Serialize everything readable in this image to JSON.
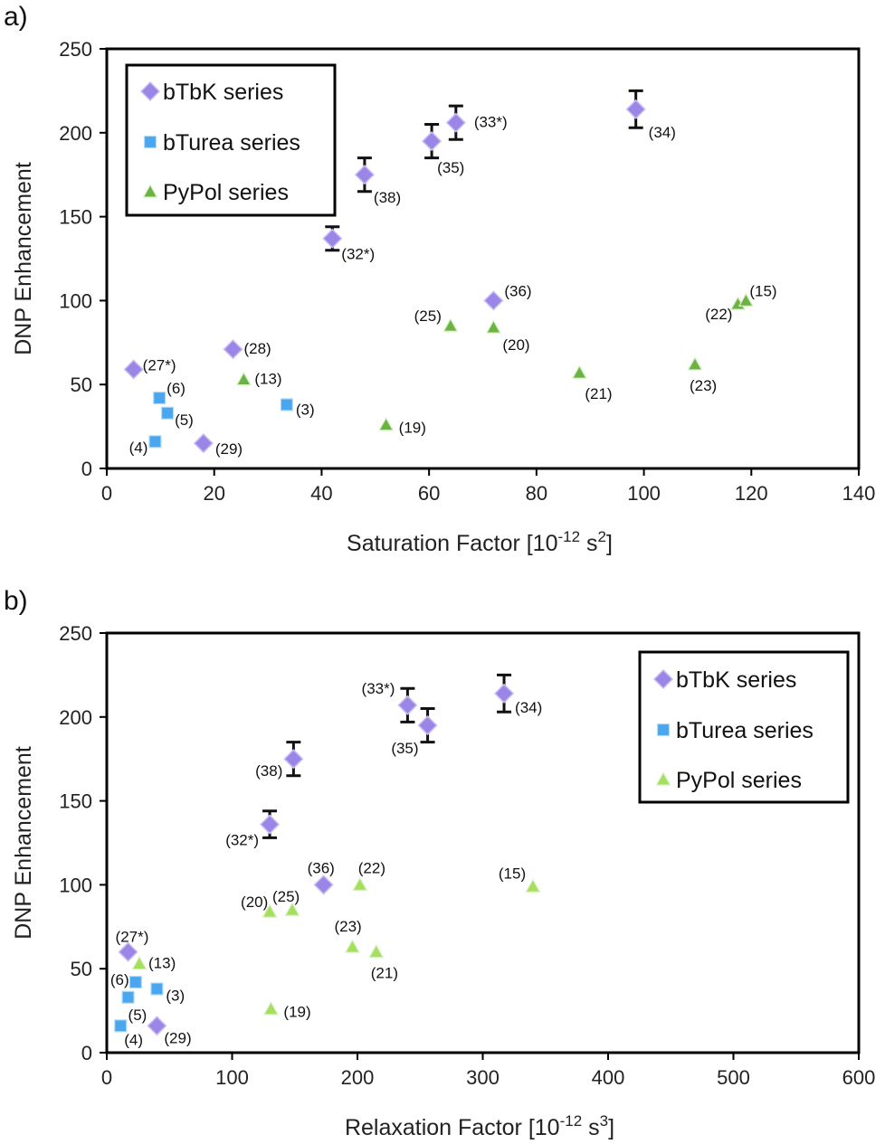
{
  "colors": {
    "bTbK": "#9b86e8",
    "bTurea": "#4aa6ee",
    "PyPol_a": "#6bb342",
    "PyPol_b": "#a4e05c",
    "errorbar": "#111111"
  },
  "chart_data": [
    {
      "panel": "a)",
      "type": "scatter",
      "xlabel": "Saturation Factor [10",
      "xlabel_exp1": "-12",
      "xlabel_mid": " s",
      "xlabel_exp2": "2",
      "xlabel_end": "]",
      "ylabel": "DNP Enhancement",
      "xlim": [
        0,
        140
      ],
      "ylim": [
        0,
        250
      ],
      "xticks": [
        0,
        20,
        40,
        60,
        80,
        100,
        120,
        140
      ],
      "yticks": [
        0,
        50,
        100,
        150,
        200,
        250
      ],
      "legend_position": "top-left",
      "series": [
        {
          "name": "bTbK series",
          "marker": "diamond",
          "points": [
            {
              "x": 5,
              "y": 59,
              "label": "(27*)"
            },
            {
              "x": 18,
              "y": 15,
              "label": "(29)"
            },
            {
              "x": 23.5,
              "y": 71,
              "label": "(28)"
            },
            {
              "x": 42,
              "y": 137,
              "label": "(32*)",
              "err": 7
            },
            {
              "x": 48,
              "y": 175,
              "label": "(38)",
              "err": 10
            },
            {
              "x": 60.5,
              "y": 195,
              "label": "(35)",
              "err": 10
            },
            {
              "x": 65,
              "y": 206,
              "label": "(33*)",
              "err": 10
            },
            {
              "x": 72,
              "y": 100,
              "label": "(36)"
            },
            {
              "x": 98.5,
              "y": 214,
              "label": "(34)",
              "err": 11
            }
          ]
        },
        {
          "name": "bTurea series",
          "marker": "square",
          "points": [
            {
              "x": 9,
              "y": 16,
              "label": "(4)"
            },
            {
              "x": 9.8,
              "y": 42,
              "label": "(6)"
            },
            {
              "x": 11.3,
              "y": 33,
              "label": "(5)"
            },
            {
              "x": 33.5,
              "y": 38,
              "label": "(3)"
            }
          ]
        },
        {
          "name": "PyPol series",
          "marker": "triangle",
          "points": [
            {
              "x": 25.5,
              "y": 53,
              "label": "(13)"
            },
            {
              "x": 52,
              "y": 26,
              "label": "(19)"
            },
            {
              "x": 64,
              "y": 85,
              "label": "(25)"
            },
            {
              "x": 72,
              "y": 84,
              "label": "(20)"
            },
            {
              "x": 88,
              "y": 57,
              "label": "(21)"
            },
            {
              "x": 109.5,
              "y": 62,
              "label": "(23)"
            },
            {
              "x": 117.5,
              "y": 98,
              "label": "(22)"
            },
            {
              "x": 119,
              "y": 100,
              "label": "(15)"
            }
          ]
        }
      ]
    },
    {
      "panel": "b)",
      "type": "scatter",
      "xlabel": "Relaxation Factor [10",
      "xlabel_exp1": "-12",
      "xlabel_mid": " s",
      "xlabel_exp2": "3",
      "xlabel_end": "]",
      "ylabel": "DNP Enhancement",
      "xlim": [
        0,
        600
      ],
      "ylim": [
        0,
        250
      ],
      "xticks": [
        0,
        100,
        200,
        300,
        400,
        500,
        600
      ],
      "yticks": [
        0,
        50,
        100,
        150,
        200,
        250
      ],
      "legend_position": "top-right",
      "series": [
        {
          "name": "bTbK series",
          "marker": "diamond",
          "points": [
            {
              "x": 17,
              "y": 60,
              "label": "(27*)"
            },
            {
              "x": 40,
              "y": 16,
              "label": "(29)"
            },
            {
              "x": 130,
              "y": 136,
              "label": "(32*)",
              "err": 8
            },
            {
              "x": 149,
              "y": 175,
              "label": "(38)",
              "err": 10
            },
            {
              "x": 173,
              "y": 100,
              "label": "(36)"
            },
            {
              "x": 240,
              "y": 207,
              "label": "(33*)",
              "err": 10
            },
            {
              "x": 256,
              "y": 195,
              "label": "(35)",
              "err": 10
            },
            {
              "x": 317,
              "y": 214,
              "label": "(34)",
              "err": 11
            }
          ]
        },
        {
          "name": "bTurea series",
          "marker": "square",
          "points": [
            {
              "x": 11,
              "y": 16,
              "label": "(4)"
            },
            {
              "x": 17,
              "y": 33,
              "label": "(5)"
            },
            {
              "x": 23,
              "y": 42,
              "label": "(6)"
            },
            {
              "x": 40,
              "y": 38,
              "label": "(3)"
            }
          ]
        },
        {
          "name": "PyPol series",
          "marker": "triangle",
          "points": [
            {
              "x": 26,
              "y": 53,
              "label": "(13)"
            },
            {
              "x": 131,
              "y": 26,
              "label": "(19)"
            },
            {
              "x": 130,
              "y": 84,
              "label": "(20)"
            },
            {
              "x": 148,
              "y": 85,
              "label": "(25)"
            },
            {
              "x": 196,
              "y": 63,
              "label": "(23)"
            },
            {
              "x": 202,
              "y": 100,
              "label": "(22)"
            },
            {
              "x": 215,
              "y": 60,
              "label": "(21)"
            },
            {
              "x": 340,
              "y": 99,
              "label": "(15)"
            }
          ]
        }
      ]
    }
  ]
}
